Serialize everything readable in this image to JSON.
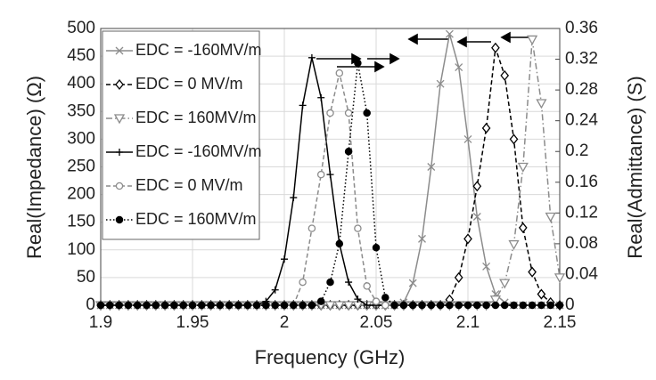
{
  "chart_data": {
    "type": "line",
    "x_label": "Frequency (GHz)",
    "y_label": "Real(Impedance) (Ω)",
    "y2_label": "Real(Admittance) (S)",
    "x": [
      1.9,
      1.905,
      1.91,
      1.915,
      1.92,
      1.925,
      1.93,
      1.935,
      1.94,
      1.945,
      1.95,
      1.955,
      1.96,
      1.965,
      1.97,
      1.975,
      1.98,
      1.985,
      1.99,
      1.995,
      2,
      2.005,
      2.01,
      2.015,
      2.02,
      2.025,
      2.03,
      2.035,
      2.04,
      2.045,
      2.05,
      2.055,
      2.06,
      2.065,
      2.07,
      2.075,
      2.08,
      2.085,
      2.09,
      2.095,
      2.1,
      2.105,
      2.11,
      2.115,
      2.12,
      2.125,
      2.13,
      2.135,
      2.14,
      2.145,
      2.15
    ],
    "xlim": [
      1.9,
      2.15
    ],
    "xticks": [
      1.9,
      1.95,
      2,
      2.05,
      2.1,
      2.15
    ],
    "ylim": [
      0,
      500
    ],
    "yticks": [
      0,
      50,
      100,
      150,
      200,
      250,
      300,
      350,
      400,
      450,
      500
    ],
    "y2lim": [
      0,
      0.36
    ],
    "y2ticks": [
      0,
      0.04,
      0.08,
      0.12,
      0.16,
      0.2,
      0.24,
      0.28,
      0.32,
      0.36
    ],
    "grid": true,
    "legend": "upper left",
    "series": [
      {
        "name": "EDC = -160MV/m",
        "color": "#8c8c8c",
        "dash": "solid",
        "marker": "x",
        "values": [
          0,
          0,
          0,
          0,
          0,
          0,
          0,
          0,
          0,
          0,
          0,
          0,
          0,
          0,
          0,
          0,
          0,
          0,
          0,
          0,
          0,
          0,
          0,
          0,
          0,
          0,
          0,
          0,
          0,
          0,
          0,
          0,
          0,
          5,
          40,
          120,
          250,
          400,
          490,
          430,
          300,
          160,
          70,
          20,
          5,
          0,
          0,
          0,
          0,
          0,
          0
        ]
      },
      {
        "name": "EDC = 0 MV/m",
        "color": "#000000",
        "dash": "dashed",
        "marker": "diamond",
        "values": [
          0,
          0,
          0,
          0,
          0,
          0,
          0,
          0,
          0,
          0,
          0,
          0,
          0,
          0,
          0,
          0,
          0,
          0,
          0,
          0,
          0,
          0,
          0,
          0,
          0,
          0,
          0,
          0,
          0,
          0,
          0,
          0,
          0,
          0,
          0,
          0,
          0,
          0,
          10,
          50,
          120,
          215,
          320,
          465,
          415,
          300,
          140,
          60,
          20,
          5,
          0
        ]
      },
      {
        "name": "EDC = 160MV/m",
        "color": "#8c8c8c",
        "dash": "dashdot",
        "marker": "triangle",
        "values": [
          0,
          0,
          0,
          0,
          0,
          0,
          0,
          0,
          0,
          0,
          0,
          0,
          0,
          0,
          0,
          0,
          0,
          0,
          0,
          0,
          0,
          0,
          0,
          0,
          0,
          0,
          0,
          0,
          0,
          0,
          0,
          0,
          0,
          0,
          0,
          0,
          0,
          0,
          0,
          0,
          0,
          0,
          0,
          10,
          40,
          110,
          250,
          480,
          365,
          160,
          50
        ]
      },
      {
        "name": "EDC = -160MV/m",
        "color": "#000000",
        "dash": "solid",
        "marker": "plus",
        "axis": "y2",
        "values": [
          0,
          0,
          0,
          0,
          0,
          0,
          0,
          0,
          0,
          0,
          0,
          0,
          0,
          0,
          0,
          0,
          0,
          0,
          0.005,
          0.02,
          0.06,
          0.14,
          0.26,
          0.322,
          0.27,
          0.17,
          0.08,
          0.03,
          0.008,
          0,
          0,
          0,
          0,
          0,
          0,
          0,
          0,
          0,
          0,
          0,
          0,
          0,
          0,
          0,
          0,
          0,
          0,
          0,
          0,
          0,
          0
        ]
      },
      {
        "name": "EDC = 0 MV/m",
        "color": "#8c8c8c",
        "dash": "dashed",
        "marker": "circle",
        "axis": "y2",
        "values": [
          0,
          0,
          0,
          0,
          0,
          0,
          0,
          0,
          0,
          0,
          0,
          0,
          0,
          0,
          0,
          0,
          0,
          0,
          0,
          0,
          0,
          0,
          0.03,
          0.1,
          0.17,
          0.25,
          0.302,
          0.25,
          0.1,
          0.025,
          0.005,
          0,
          0,
          0,
          0,
          0,
          0,
          0,
          0,
          0,
          0,
          0,
          0,
          0,
          0,
          0,
          0,
          0,
          0,
          0,
          0
        ]
      },
      {
        "name": "EDC = 160MV/m",
        "color": "#000000",
        "dash": "dotted",
        "marker": "dot",
        "axis": "y2",
        "values": [
          0,
          0,
          0,
          0,
          0,
          0,
          0,
          0,
          0,
          0,
          0,
          0,
          0,
          0,
          0,
          0,
          0,
          0,
          0,
          0,
          0,
          0,
          0,
          0,
          0.005,
          0.03,
          0.08,
          0.2,
          0.315,
          0.25,
          0.075,
          0.01,
          0,
          0,
          0,
          0,
          0,
          0,
          0,
          0,
          0,
          0,
          0,
          0,
          0,
          0,
          0,
          0,
          0,
          0,
          0
        ]
      }
    ]
  }
}
